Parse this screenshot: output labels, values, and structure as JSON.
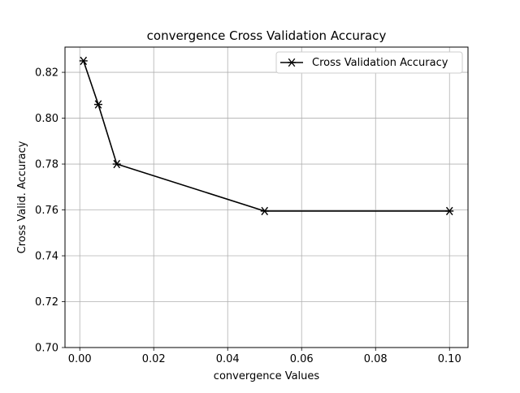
{
  "chart_data": {
    "type": "line",
    "title": "convergence Cross Validation Accuracy",
    "xlabel": "convergence Values",
    "ylabel": "Cross Valid. Accuracy",
    "xlim": [
      -0.004,
      0.105
    ],
    "ylim": [
      0.7,
      0.831
    ],
    "x_ticks": [
      0.0,
      0.02,
      0.04,
      0.06,
      0.08,
      0.1
    ],
    "x_tick_labels": [
      "0.00",
      "0.02",
      "0.04",
      "0.06",
      "0.08",
      "0.10"
    ],
    "y_ticks": [
      0.7,
      0.72,
      0.74,
      0.76,
      0.78,
      0.8,
      0.82
    ],
    "y_tick_labels": [
      "0.70",
      "0.72",
      "0.74",
      "0.76",
      "0.78",
      "0.80",
      "0.82"
    ],
    "grid": true,
    "legend_position": "top-right",
    "series": [
      {
        "name": "Cross Validation Accuracy",
        "color": "#000000",
        "marker": "x-star",
        "x": [
          0.001,
          0.005,
          0.01,
          0.05,
          0.1
        ],
        "y": [
          0.825,
          0.806,
          0.78,
          0.7595,
          0.7595
        ]
      }
    ]
  }
}
